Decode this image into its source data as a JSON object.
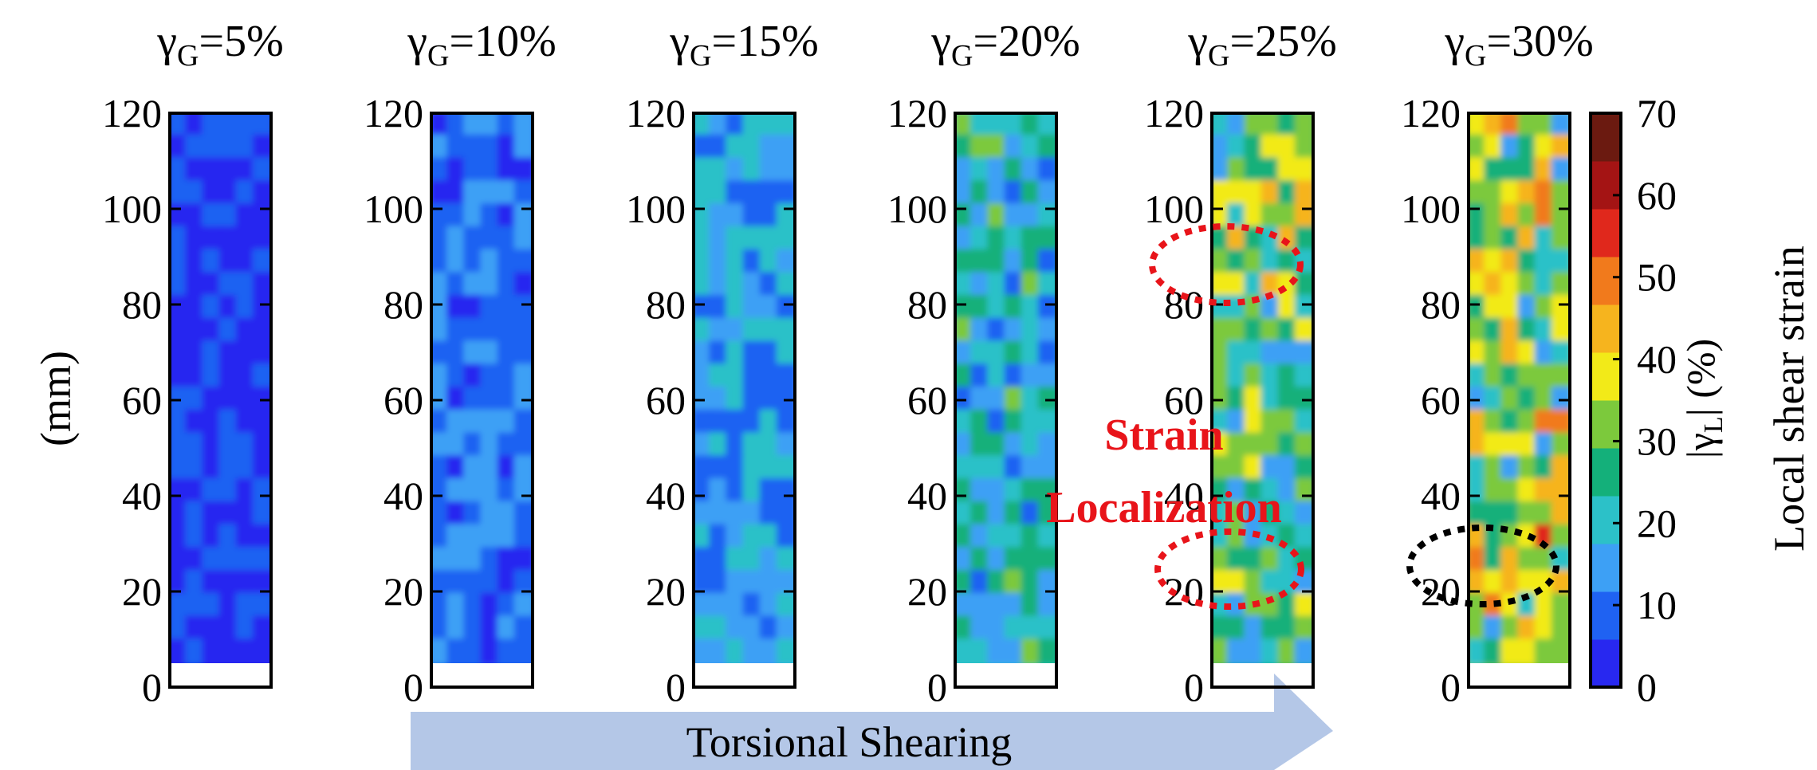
{
  "chart_data": {
    "type": "heatmap",
    "panels": [
      {
        "label_base": "γ",
        "label_sub": "G",
        "label_value": "=5%",
        "mean_strain": 5
      },
      {
        "label_base": "γ",
        "label_sub": "G",
        "label_value": "=10%",
        "mean_strain": 10
      },
      {
        "label_base": "γ",
        "label_sub": "G",
        "label_value": "=15%",
        "mean_strain": 15
      },
      {
        "label_base": "γ",
        "label_sub": "G",
        "label_value": "=20%",
        "mean_strain": 20
      },
      {
        "label_base": "γ",
        "label_sub": "G",
        "label_value": "=25%",
        "mean_strain": 25
      },
      {
        "label_base": "γ",
        "label_sub": "G",
        "label_value": "=30%",
        "mean_strain": 30
      }
    ],
    "y_ticks": [
      "0",
      "20",
      "40",
      "60",
      "80",
      "100",
      "120"
    ],
    "y_tick_values": [
      0,
      20,
      40,
      60,
      80,
      100,
      120
    ],
    "ylim": [
      0,
      120
    ],
    "ylabel": "(mm)",
    "colorbar": {
      "ticks": [
        "0",
        "10",
        "20",
        "30",
        "40",
        "50",
        "60",
        "70"
      ],
      "tick_values": [
        0,
        10,
        20,
        30,
        40,
        50,
        60,
        70
      ],
      "range": [
        0,
        70
      ],
      "label_symbol_base": "|γ",
      "label_symbol_sub": "L",
      "label_symbol_rest": "| (%)",
      "label_text": "Local shear strain",
      "colors": [
        "#2828f0",
        "#1f62f2",
        "#3da0f5",
        "#2cc1c8",
        "#14b07a",
        "#7cc93c",
        "#f2ea18",
        "#f6b41e",
        "#f17a1c",
        "#e0281c",
        "#a41414",
        "#6b1a10"
      ]
    },
    "annotations": {
      "localization_text_line1": "Strain",
      "localization_text_line2": "Localization",
      "arrow_text": "Torsional Shearing"
    },
    "colors": {
      "localization_marker": "#e8141a",
      "black_marker": "#000000",
      "arrow_fill": "#b4c7e7"
    }
  }
}
